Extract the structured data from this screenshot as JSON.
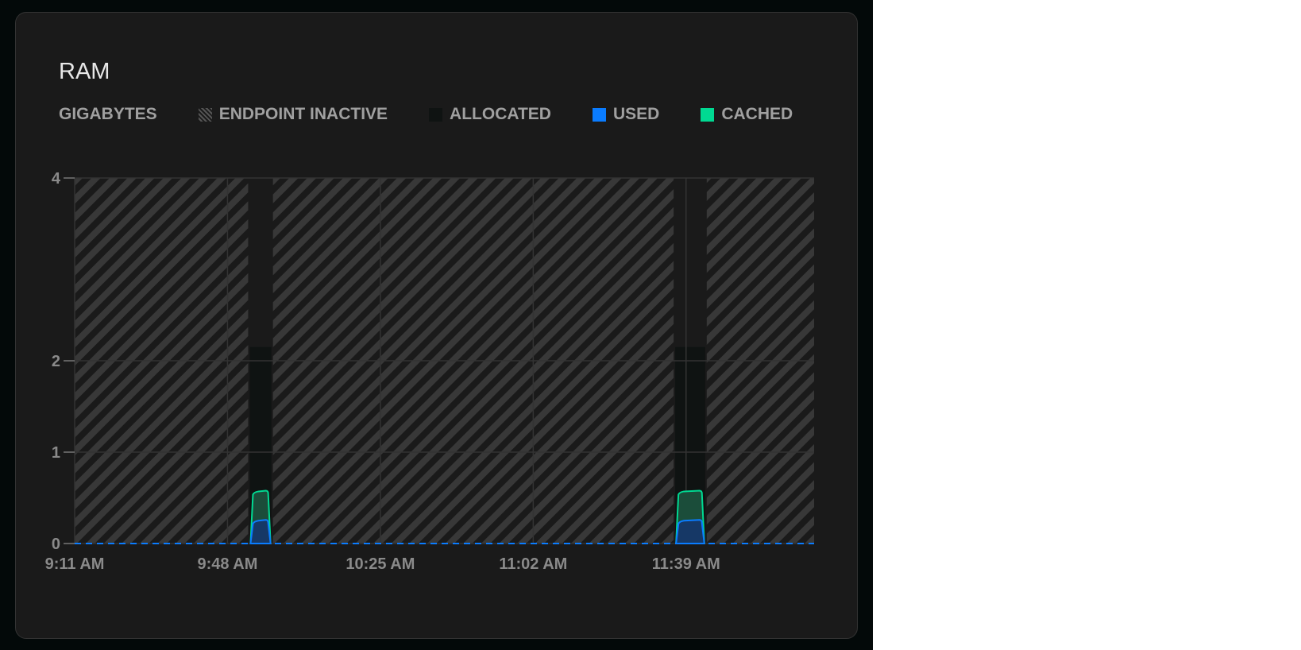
{
  "title": "RAM",
  "legend": {
    "unit": "GIGABYTES",
    "items": [
      {
        "label": "ENDPOINT INACTIVE",
        "color": "#3a3a3a",
        "style": "hatched"
      },
      {
        "label": "ALLOCATED",
        "color": "#0f1312"
      },
      {
        "label": "USED",
        "color": "#0a7cff"
      },
      {
        "label": "CACHED",
        "color": "#00d992"
      }
    ]
  },
  "chart_data": {
    "type": "area",
    "ylabel": "GIGABYTES",
    "ylim": [
      0,
      4
    ],
    "yticks": [
      "0",
      "1",
      "2",
      "4"
    ],
    "ytick_values": [
      0,
      1,
      2,
      4
    ],
    "xticks": [
      "9:11 AM",
      "9:48 AM",
      "10:25 AM",
      "11:02 AM",
      "11:39 AM"
    ],
    "xrange": [
      "9:11 AM",
      "12:10 PM"
    ],
    "grid": true,
    "legend_position": "top",
    "inactive_background": true,
    "active_windows": [
      {
        "start": "9:53 AM",
        "end": "9:59 AM",
        "allocated": 2.15,
        "cached": 0.57,
        "used": 0.25
      },
      {
        "start": "11:36 AM",
        "end": "11:44 AM",
        "allocated": 2.15,
        "cached": 0.57,
        "used": 0.25
      }
    ],
    "baseline_used": 0,
    "colors": {
      "grid": "#333333",
      "used": "#0a7cff",
      "cached": "#00d992",
      "allocated": "#0f1312",
      "hatch": "#3a3a3a"
    }
  }
}
